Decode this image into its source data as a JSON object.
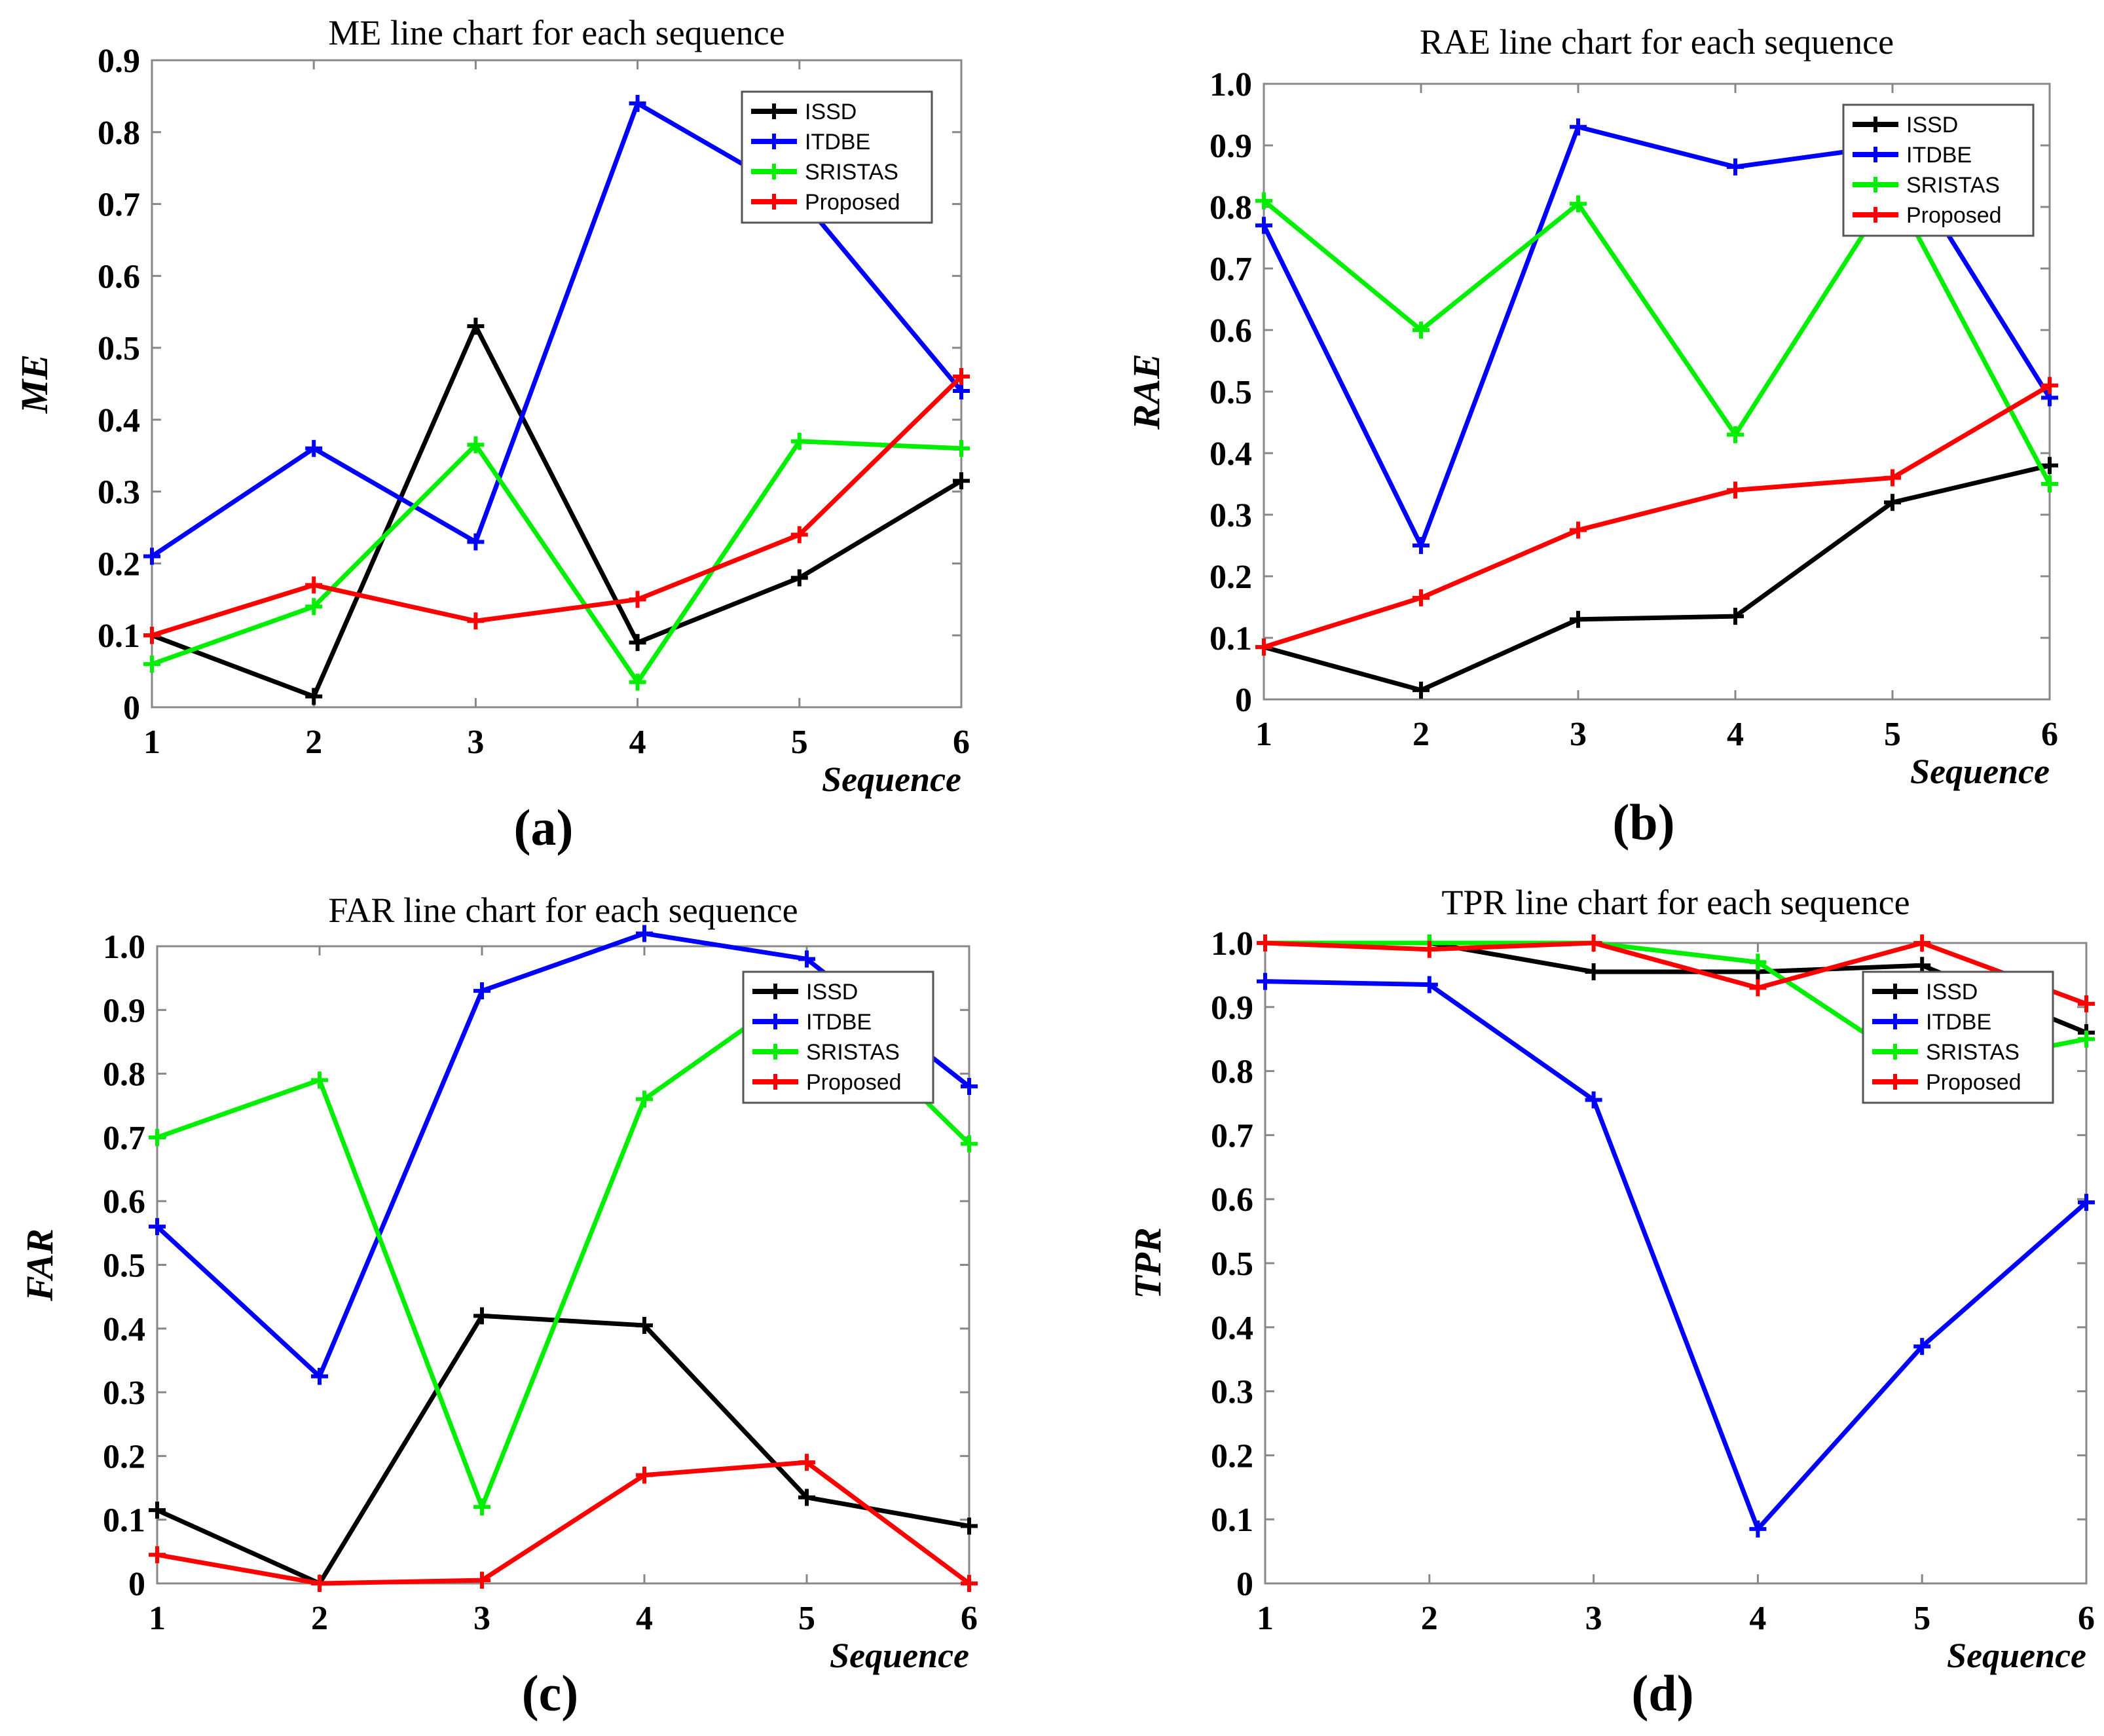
{
  "colors": {
    "ISSD": "#000000",
    "ITDBE": "#0000ff",
    "SRISTAS": "#00ee00",
    "Proposed": "#ff0000",
    "axis": "#888888"
  },
  "chart_data": [
    {
      "type": "line",
      "panel": "(a)",
      "title": "ME line chart for each sequence",
      "xlabel": "Sequence",
      "ylabel": "ME",
      "x": [
        1,
        2,
        3,
        4,
        5,
        6
      ],
      "ylim": [
        0,
        0.9
      ],
      "yticks": [
        "0",
        "0.1",
        "0.2",
        "0.3",
        "0.4",
        "0.5",
        "0.6",
        "0.7",
        "0.8",
        "0.9"
      ],
      "legend_position": "top-right",
      "series": [
        {
          "name": "ISSD",
          "values": [
            0.1,
            0.015,
            0.53,
            0.09,
            0.18,
            0.315
          ]
        },
        {
          "name": "ITDBE",
          "values": [
            0.21,
            0.36,
            0.23,
            0.84,
            0.71,
            0.44
          ]
        },
        {
          "name": "SRISTAS",
          "values": [
            0.06,
            0.14,
            0.365,
            0.035,
            0.37,
            0.36
          ]
        },
        {
          "name": "Proposed",
          "values": [
            0.1,
            0.17,
            0.12,
            0.15,
            0.24,
            0.46
          ]
        }
      ]
    },
    {
      "type": "line",
      "panel": "(b)",
      "title": "RAE line chart for each sequence",
      "xlabel": "Sequence",
      "ylabel": "RAE",
      "x": [
        1,
        2,
        3,
        4,
        5,
        6
      ],
      "ylim": [
        0,
        1.0
      ],
      "yticks": [
        "0",
        "0.1",
        "0.2",
        "0.3",
        "0.4",
        "0.5",
        "0.6",
        "0.7",
        "0.8",
        "0.9",
        "1.0"
      ],
      "legend_position": "top-right",
      "series": [
        {
          "name": "ISSD",
          "values": [
            0.085,
            0.015,
            0.13,
            0.135,
            0.32,
            0.38
          ]
        },
        {
          "name": "ITDBE",
          "values": [
            0.77,
            0.25,
            0.93,
            0.865,
            0.9,
            0.49
          ]
        },
        {
          "name": "SRISTAS",
          "values": [
            0.81,
            0.6,
            0.805,
            0.43,
            0.83,
            0.35
          ]
        },
        {
          "name": "Proposed",
          "values": [
            0.085,
            0.165,
            0.275,
            0.34,
            0.36,
            0.51
          ]
        }
      ]
    },
    {
      "type": "line",
      "panel": "(c)",
      "title": "FAR line chart for each sequence",
      "xlabel": "Sequence",
      "ylabel": "FAR",
      "x": [
        1,
        2,
        3,
        4,
        5,
        6
      ],
      "ylim": [
        0,
        1.0
      ],
      "yticks": [
        "0",
        "0.1",
        "0.2",
        "0.3",
        "0.4",
        "0.5",
        "0.6",
        "0.7",
        "0.8",
        "0.9",
        "1.0"
      ],
      "legend_position": "top-right",
      "series": [
        {
          "name": "ISSD",
          "values": [
            0.115,
            0.0,
            0.42,
            0.405,
            0.135,
            0.09
          ]
        },
        {
          "name": "ITDBE",
          "values": [
            0.56,
            0.325,
            0.93,
            1.02,
            0.98,
            0.78
          ]
        },
        {
          "name": "SRISTAS",
          "values": [
            0.7,
            0.79,
            0.12,
            0.76,
            0.94,
            0.69
          ]
        },
        {
          "name": "Proposed",
          "values": [
            0.045,
            0.0,
            0.005,
            0.17,
            0.19,
            0.0
          ]
        }
      ]
    },
    {
      "type": "line",
      "panel": "(d)",
      "title": "TPR line chart for each sequence",
      "xlabel": "Sequence",
      "ylabel": "TPR",
      "x": [
        1,
        2,
        3,
        4,
        5,
        6
      ],
      "ylim": [
        0,
        1.0
      ],
      "yticks": [
        "0",
        "0.1",
        "0.2",
        "0.3",
        "0.4",
        "0.5",
        "0.6",
        "0.7",
        "0.8",
        "0.9",
        "1.0"
      ],
      "legend_position": "top-right",
      "series": [
        {
          "name": "ISSD",
          "values": [
            1.0,
            1.0,
            0.955,
            0.955,
            0.965,
            0.86
          ]
        },
        {
          "name": "ITDBE",
          "values": [
            0.94,
            0.935,
            0.755,
            0.085,
            0.37,
            0.595
          ]
        },
        {
          "name": "SRISTAS",
          "values": [
            1.0,
            1.0,
            1.0,
            0.97,
            0.8,
            0.85
          ]
        },
        {
          "name": "Proposed",
          "values": [
            1.0,
            0.99,
            1.0,
            0.93,
            1.0,
            0.905
          ]
        }
      ]
    }
  ]
}
